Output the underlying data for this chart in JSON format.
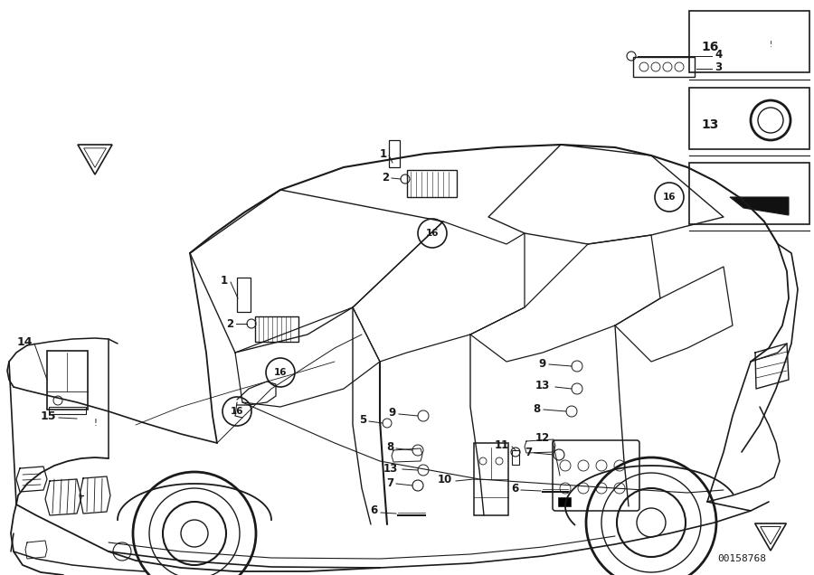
{
  "bg_color": "#ffffff",
  "line_color": "#1a1a1a",
  "fig_width": 9.0,
  "fig_height": 6.36,
  "dpi": 100,
  "diagram_id": "00158768"
}
